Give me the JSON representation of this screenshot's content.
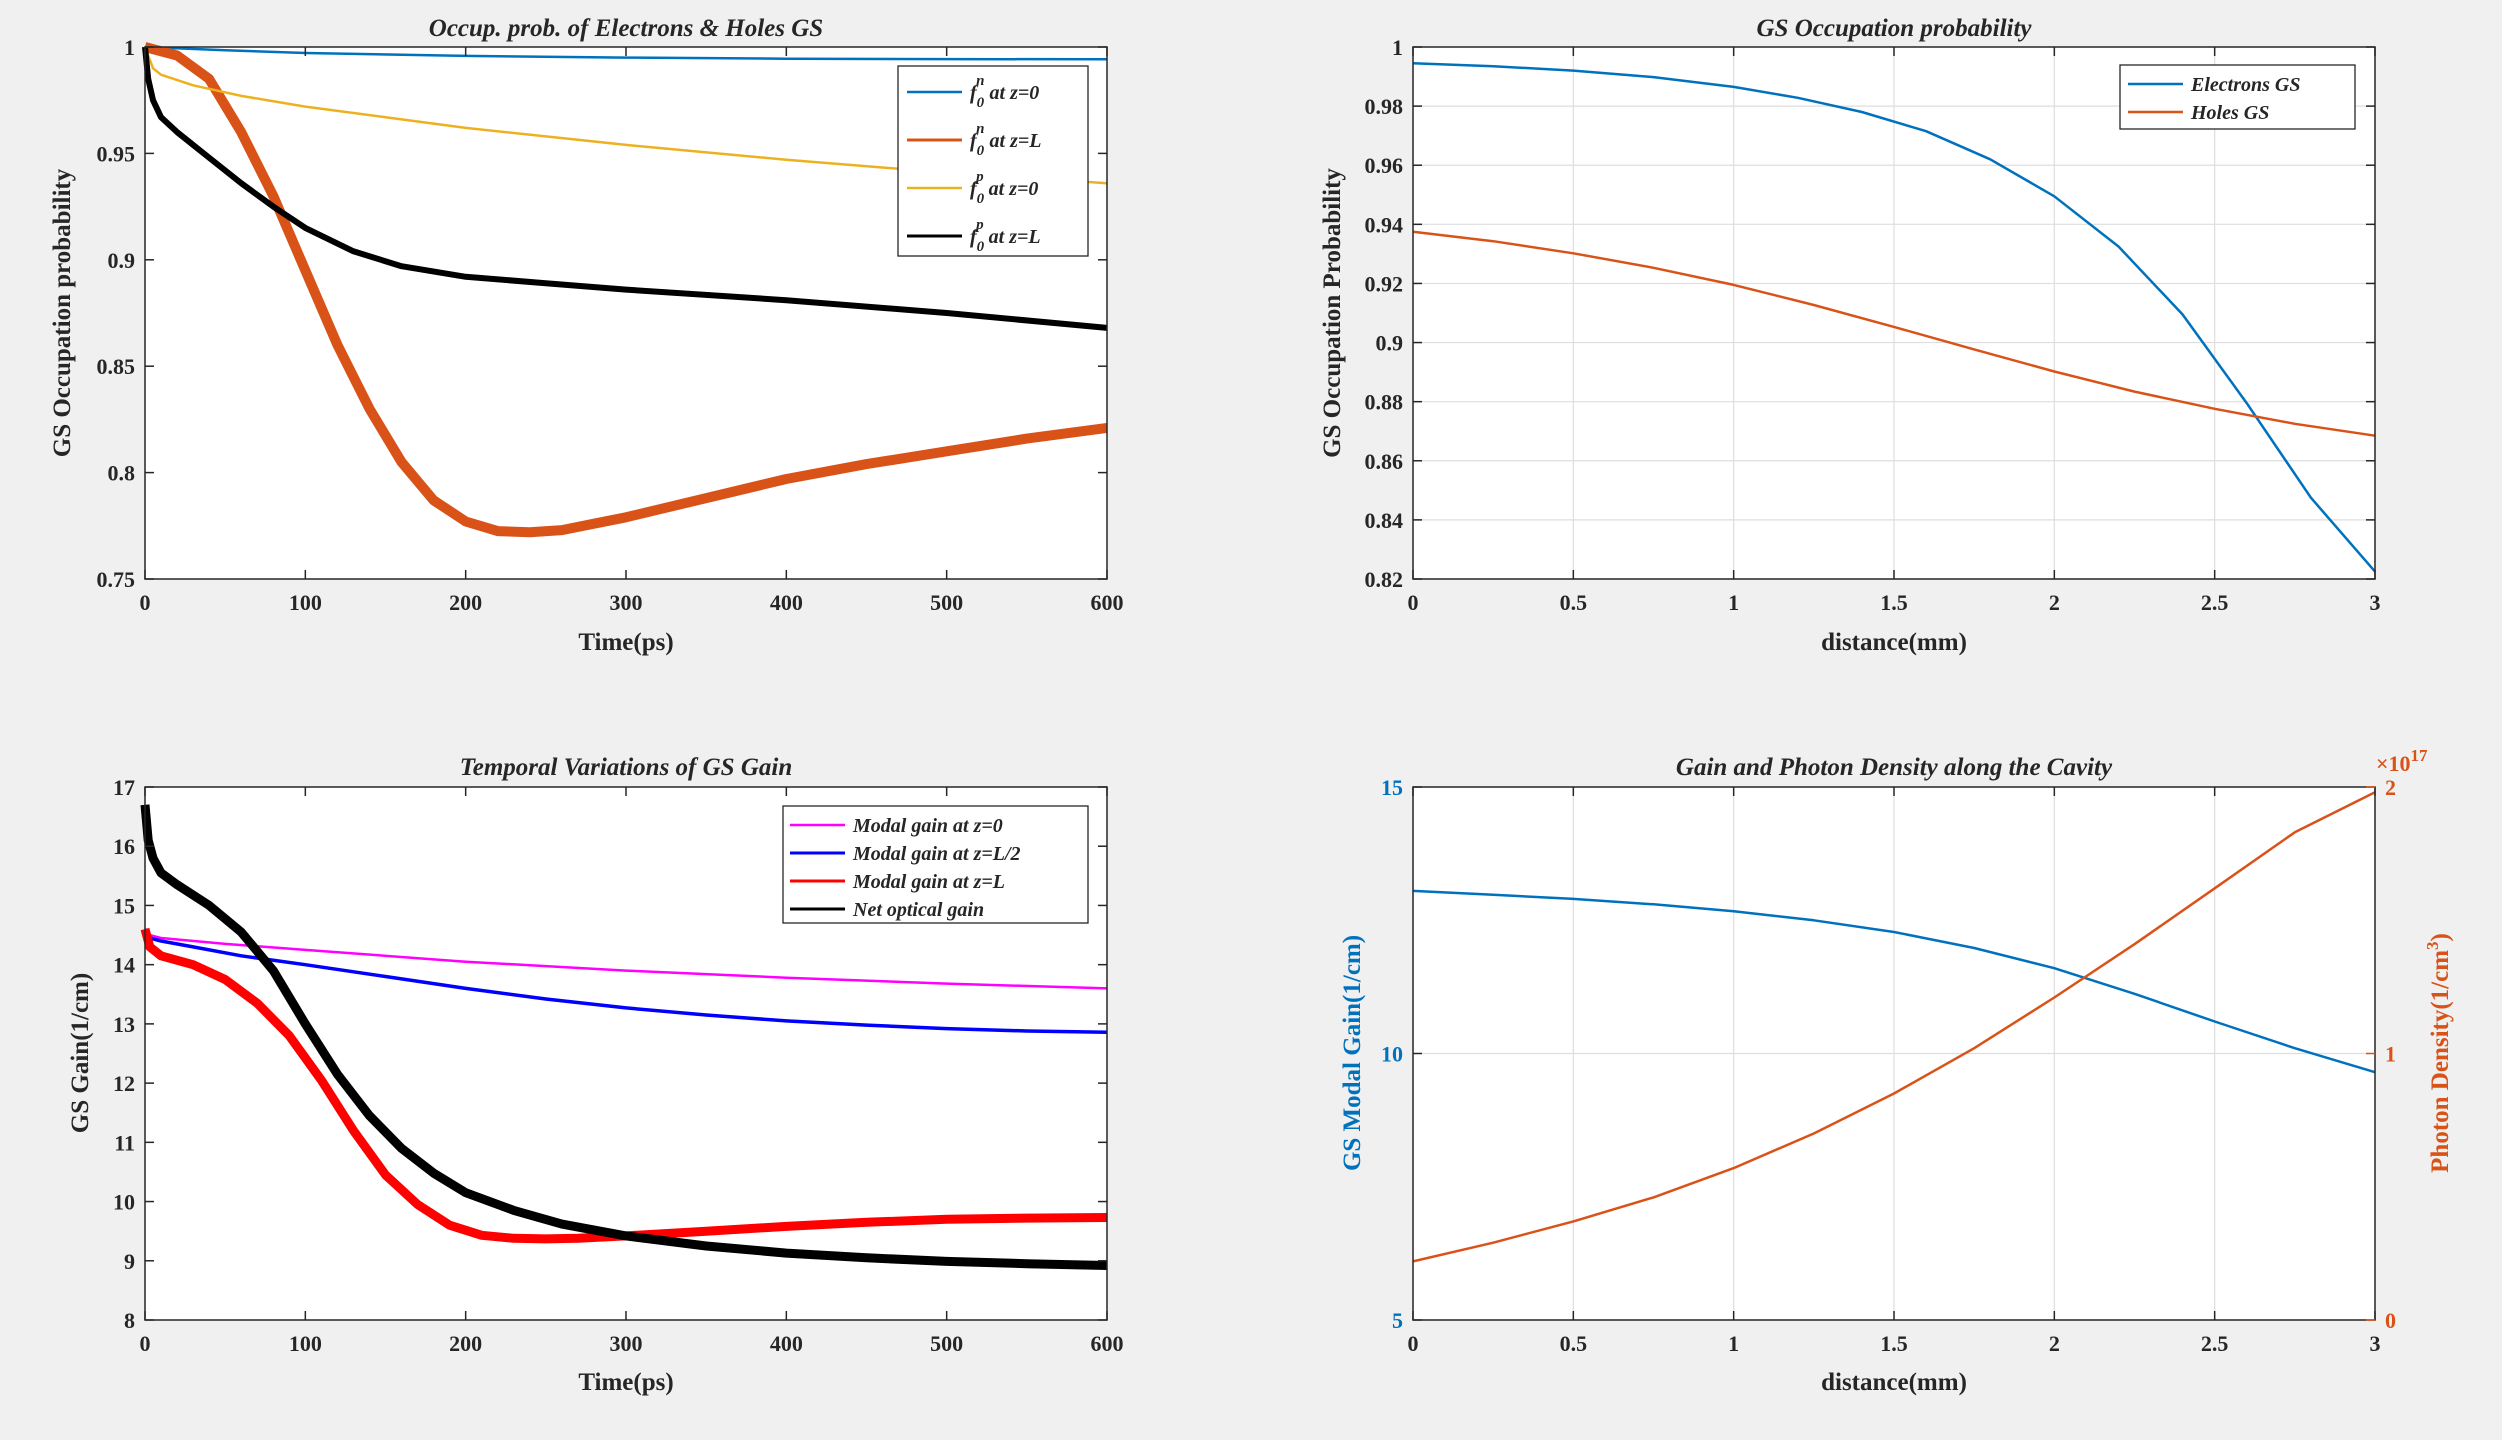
{
  "figure_background": "#f0f0f0",
  "chart_data": [
    {
      "id": "p1",
      "type": "line",
      "title": "Occup. prob. of Electrons & Holes GS",
      "xlabel": "Time(ps)",
      "ylabel": "GS Occupation probability",
      "xlim": [
        0,
        600
      ],
      "ylim": [
        0.75,
        1
      ],
      "xticks": [
        0,
        100,
        200,
        300,
        400,
        500,
        600
      ],
      "xtick_labels": [
        "0",
        "100",
        "200",
        "300",
        "400",
        "500",
        "600"
      ],
      "yticks": [
        0.75,
        0.8,
        0.85,
        0.9,
        0.95,
        1
      ],
      "ytick_labels": [
        "0.75",
        "0.8",
        "0.85",
        "0.9",
        "0.95",
        "1"
      ],
      "grid": false,
      "legend_position": "top-right",
      "series": [
        {
          "name": "f0n at z=0",
          "label_base": "f",
          "label_sub": "0",
          "label_sup": "n",
          "label_rest": " at z=0",
          "color": "#0072bd",
          "width": 2.5,
          "thick": false,
          "x": [
            0,
            50,
            100,
            200,
            300,
            400,
            500,
            600
          ],
          "y": [
            1.0,
            0.9985,
            0.9972,
            0.9958,
            0.995,
            0.9945,
            0.9943,
            0.9942
          ]
        },
        {
          "name": "f0n at z=L",
          "label_base": "f",
          "label_sub": "0",
          "label_sup": "n",
          "label_rest": " at z=L",
          "color": "#d95319",
          "width": 10,
          "thick": true,
          "x": [
            0,
            20,
            40,
            60,
            80,
            100,
            120,
            140,
            160,
            180,
            200,
            220,
            240,
            260,
            280,
            300,
            350,
            400,
            450,
            500,
            550,
            600
          ],
          "y": [
            1.0,
            0.996,
            0.985,
            0.96,
            0.93,
            0.895,
            0.86,
            0.83,
            0.805,
            0.787,
            0.777,
            0.7725,
            0.772,
            0.773,
            0.776,
            0.779,
            0.788,
            0.797,
            0.804,
            0.81,
            0.816,
            0.821
          ]
        },
        {
          "name": "f0p at z=0",
          "label_base": "f",
          "label_sub": "0",
          "label_sup": "p",
          "label_rest": " at z=0",
          "color": "#edb120",
          "width": 2.5,
          "thick": false,
          "x": [
            0,
            5,
            10,
            30,
            60,
            100,
            150,
            200,
            300,
            400,
            500,
            600
          ],
          "y": [
            1.0,
            0.99,
            0.987,
            0.982,
            0.977,
            0.972,
            0.967,
            0.962,
            0.954,
            0.947,
            0.941,
            0.936
          ]
        },
        {
          "name": "f0p at z=L",
          "label_base": "f",
          "label_sub": "0",
          "label_sup": "p",
          "label_rest": " at z=L",
          "color": "#000000",
          "width": 6,
          "thick": true,
          "x": [
            0,
            2,
            5,
            10,
            20,
            40,
            60,
            80,
            100,
            130,
            160,
            200,
            250,
            300,
            400,
            500,
            600
          ],
          "y": [
            1.0,
            0.985,
            0.975,
            0.967,
            0.96,
            0.948,
            0.936,
            0.925,
            0.915,
            0.904,
            0.897,
            0.892,
            0.889,
            0.886,
            0.881,
            0.875,
            0.868
          ]
        }
      ]
    },
    {
      "id": "p2",
      "type": "line",
      "title": "GS Occupation probability",
      "xlabel": "distance(mm)",
      "ylabel": "GS Occupation Probability",
      "xlim": [
        0,
        3
      ],
      "ylim": [
        0.82,
        1
      ],
      "xticks": [
        0,
        0.5,
        1,
        1.5,
        2,
        2.5,
        3
      ],
      "xtick_labels": [
        "0",
        "0.5",
        "1",
        "1.5",
        "2",
        "2.5",
        "3"
      ],
      "yticks": [
        0.82,
        0.84,
        0.86,
        0.88,
        0.9,
        0.92,
        0.94,
        0.96,
        0.98,
        1
      ],
      "ytick_labels": [
        "0.82",
        "0.84",
        "0.86",
        "0.88",
        "0.9",
        "0.92",
        "0.94",
        "0.96",
        "0.98",
        "1"
      ],
      "grid": true,
      "legend_position": "top-right",
      "series": [
        {
          "name": "Electrons GS",
          "color": "#0072bd",
          "width": 2.5,
          "thick": false,
          "x": [
            0,
            0.25,
            0.5,
            0.75,
            1.0,
            1.2,
            1.4,
            1.6,
            1.8,
            2.0,
            2.2,
            2.4,
            2.6,
            2.8,
            3.0
          ],
          "y": [
            0.9945,
            0.9935,
            0.992,
            0.9898,
            0.9865,
            0.9828,
            0.978,
            0.9715,
            0.962,
            0.9495,
            0.9325,
            0.9095,
            0.8795,
            0.8475,
            0.8225
          ]
        },
        {
          "name": "Holes GS",
          "color": "#d95319",
          "width": 2.5,
          "thick": false,
          "x": [
            0,
            0.25,
            0.5,
            0.75,
            1.0,
            1.25,
            1.5,
            1.75,
            2.0,
            2.25,
            2.5,
            2.75,
            3.0
          ],
          "y": [
            0.9375,
            0.9343,
            0.9302,
            0.9253,
            0.9195,
            0.9127,
            0.9053,
            0.8977,
            0.8902,
            0.8834,
            0.8776,
            0.8725,
            0.8685
          ]
        }
      ]
    },
    {
      "id": "p3",
      "type": "line",
      "title": "Temporal Variations of GS Gain",
      "xlabel": "Time(ps)",
      "ylabel": "GS Gain(1/cm)",
      "xlim": [
        0,
        600
      ],
      "ylim": [
        8,
        17
      ],
      "xticks": [
        0,
        100,
        200,
        300,
        400,
        500,
        600
      ],
      "xtick_labels": [
        "0",
        "100",
        "200",
        "300",
        "400",
        "500",
        "600"
      ],
      "yticks": [
        8,
        9,
        10,
        11,
        12,
        13,
        14,
        15,
        16,
        17
      ],
      "ytick_labels": [
        "8",
        "9",
        "10",
        "11",
        "12",
        "13",
        "14",
        "15",
        "16",
        "17"
      ],
      "grid": false,
      "legend_position": "top-right",
      "series": [
        {
          "name": "Modal gain at z=0",
          "color": "#ff00ff",
          "width": 2.5,
          "thick": false,
          "x": [
            0,
            3,
            10,
            50,
            100,
            200,
            300,
            400,
            500,
            600
          ],
          "y": [
            14.6,
            14.5,
            14.45,
            14.35,
            14.25,
            14.05,
            13.9,
            13.78,
            13.68,
            13.6
          ]
        },
        {
          "name": "Modal gain at z=L/2",
          "color": "#0000ff",
          "width": 3.5,
          "thick": false,
          "x": [
            0,
            3,
            10,
            30,
            60,
            100,
            150,
            200,
            250,
            300,
            350,
            400,
            450,
            500,
            550,
            600
          ],
          "y": [
            14.6,
            14.45,
            14.4,
            14.3,
            14.15,
            14.0,
            13.8,
            13.6,
            13.42,
            13.27,
            13.15,
            13.05,
            12.98,
            12.92,
            12.88,
            12.86
          ]
        },
        {
          "name": "Modal gain at z=L",
          "color": "#ff0000",
          "width": 9,
          "thick": true,
          "x": [
            0,
            3,
            10,
            30,
            50,
            70,
            90,
            110,
            130,
            150,
            170,
            190,
            210,
            230,
            250,
            270,
            300,
            350,
            400,
            450,
            500,
            550,
            600
          ],
          "y": [
            14.6,
            14.3,
            14.15,
            14.0,
            13.75,
            13.35,
            12.8,
            12.05,
            11.2,
            10.45,
            9.95,
            9.6,
            9.43,
            9.38,
            9.37,
            9.38,
            9.42,
            9.5,
            9.58,
            9.65,
            9.7,
            9.72,
            9.73
          ]
        },
        {
          "name": "Net optical gain",
          "color": "#000000",
          "width": 9,
          "thick": true,
          "x": [
            0,
            2,
            5,
            10,
            20,
            40,
            60,
            80,
            100,
            120,
            140,
            160,
            180,
            200,
            230,
            260,
            300,
            350,
            400,
            450,
            500,
            550,
            600
          ],
          "y": [
            16.7,
            16.1,
            15.8,
            15.55,
            15.35,
            15.0,
            14.55,
            13.9,
            13.0,
            12.15,
            11.45,
            10.9,
            10.48,
            10.15,
            9.85,
            9.62,
            9.42,
            9.25,
            9.13,
            9.05,
            8.99,
            8.95,
            8.92
          ]
        }
      ]
    },
    {
      "id": "p4",
      "type": "line",
      "title": "Gain and Photon Density along the Cavity",
      "xlabel": "distance(mm)",
      "ylabel": "GS Modal Gain(1/cm)",
      "ylabel_color": "#0072bd",
      "y2label_base": "Photon Density(1/cm",
      "y2label_sup": "3",
      "y2label_tail": ")",
      "y2label_color": "#d95319",
      "y2_exponent_base": "×10",
      "y2_exponent_power": "17",
      "xlim": [
        0,
        3
      ],
      "ylim": [
        5,
        15
      ],
      "y2lim": [
        0,
        2
      ],
      "xticks": [
        0,
        0.5,
        1,
        1.5,
        2,
        2.5,
        3
      ],
      "xtick_labels": [
        "0",
        "0.5",
        "1",
        "1.5",
        "2",
        "2.5",
        "3"
      ],
      "yticks": [
        5,
        10,
        15
      ],
      "ytick_labels": [
        "5",
        "10",
        "15"
      ],
      "y2ticks": [
        0,
        1,
        2
      ],
      "y2tick_labels": [
        "0",
        "1",
        "2"
      ],
      "grid": true,
      "series": [
        {
          "name": "GS Modal Gain",
          "axis": "left",
          "color": "#0072bd",
          "width": 2.5,
          "thick": false,
          "x": [
            0,
            0.25,
            0.5,
            0.75,
            1.0,
            1.25,
            1.5,
            1.75,
            2.0,
            2.25,
            2.5,
            2.75,
            3.0
          ],
          "y": [
            13.05,
            12.98,
            12.9,
            12.8,
            12.67,
            12.5,
            12.28,
            11.98,
            11.6,
            11.12,
            10.6,
            10.1,
            9.65
          ]
        },
        {
          "name": "Photon Density",
          "axis": "right",
          "color": "#d95319",
          "width": 2.5,
          "thick": false,
          "x": [
            0,
            0.25,
            0.5,
            0.75,
            1.0,
            1.25,
            1.5,
            1.75,
            2.0,
            2.25,
            2.5,
            2.75,
            3.0
          ],
          "y": [
            0.22,
            0.29,
            0.37,
            0.46,
            0.57,
            0.7,
            0.85,
            1.02,
            1.21,
            1.41,
            1.62,
            1.83,
            1.98
          ]
        }
      ]
    }
  ]
}
